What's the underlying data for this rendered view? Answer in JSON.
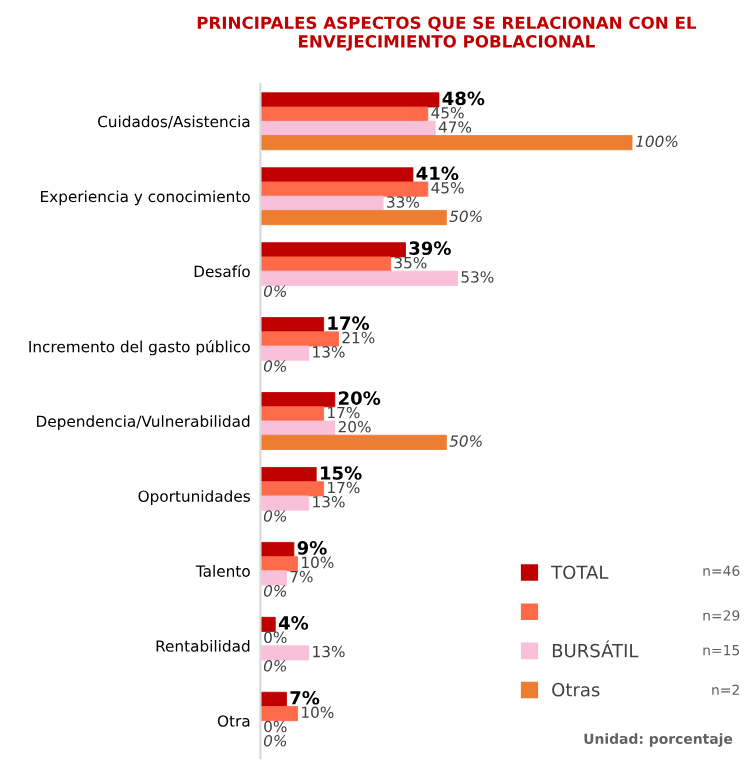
{
  "chart_data": {
    "type": "bar",
    "orientation": "horizontal",
    "title": "PRINCIPALES ASPECTOS QUE SE RELACIONAN CON EL ENVEJECIMIENTO POBLACIONAL",
    "categories": [
      "Cuidados/Asistencia",
      "Experiencia y conocimiento",
      "Desafío",
      "Incremento del gasto público",
      "Dependencia/Vulnerabilidad",
      "Oportunidades",
      "Talento",
      "Rentabilidad",
      "Otra"
    ],
    "series": [
      {
        "name": "TOTAL",
        "color": "#c00000",
        "values": [
          48,
          41,
          39,
          17,
          20,
          15,
          9,
          4,
          7
        ],
        "value_labels": [
          "48%",
          "41%",
          "39%",
          "17%",
          "20%",
          "15%",
          "9%",
          "4%",
          "7%"
        ]
      },
      {
        "color": "#ff6a4a",
        "values": [
          45,
          45,
          35,
          21,
          17,
          17,
          10,
          0,
          10
        ],
        "value_labels": [
          "45%",
          "45%",
          "35%",
          "21%",
          "17%",
          "17%",
          "10%",
          "0%",
          "10%"
        ]
      },
      {
        "name": "BURSÁTIL",
        "color": "#f9c0d9",
        "values": [
          47,
          33,
          53,
          13,
          20,
          13,
          7,
          13,
          0
        ],
        "value_labels": [
          "47%",
          "33%",
          "53%",
          "13%",
          "20%",
          "13%",
          "7%",
          "13%",
          "0%"
        ]
      },
      {
        "name": "Otras",
        "color": "#ed7d31",
        "values": [
          100,
          50,
          0,
          0,
          50,
          0,
          0,
          0,
          0
        ],
        "value_labels": [
          "100%",
          "50%",
          "0%",
          "0%",
          "50%",
          "0%",
          "0%",
          "0%",
          "0%"
        ]
      }
    ],
    "legend": "bottom right",
    "annotations": [
      "n=46",
      "n=29",
      "n=15",
      "n=2",
      "Unidad: porcentaje"
    ]
  }
}
